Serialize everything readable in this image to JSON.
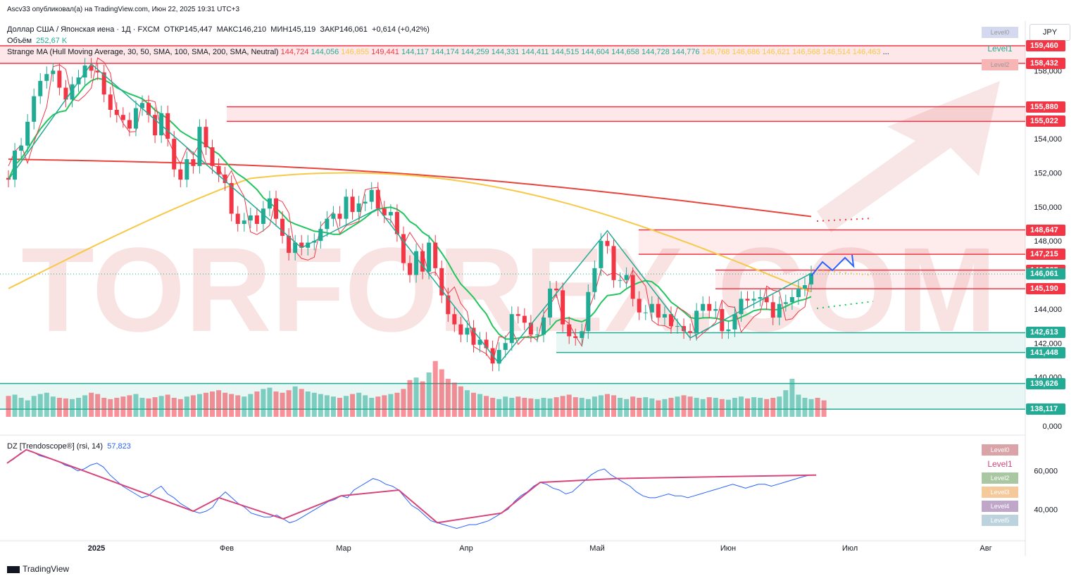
{
  "header": {
    "publisher_line": "Ascv33 опубликовал(а) на TradingView.com, Июн 22, 2025 19:31 UTC+3",
    "symbol": "Доллар США / Японская иена · 1Д · FXCM",
    "open_label": "ОТКР",
    "open": "145,447",
    "high_label": "МАКС",
    "high": "146,210",
    "low_label": "МИН",
    "low": "145,119",
    "close_label": "ЗАКР",
    "close": "146,061",
    "change": "+0,614 (+0,42%)",
    "volume_label": "Объём",
    "volume": "252,67 K",
    "indicator_name": "Strange MA (Hull Moving Average, 30, 50, SMA, 100, SMA, 200, SMA, Neutral)",
    "indicator_values": [
      "144,724",
      "144,056",
      "146,855",
      "149,441",
      "144,117",
      "144,174",
      "144,259",
      "144,331",
      "144,411",
      "144,515",
      "144,604",
      "144,658",
      "144,728",
      "144,776",
      "146,768",
      "146,686",
      "146,621",
      "146,568",
      "146,514",
      "146,463"
    ],
    "indicator_value_colors": [
      "#f23645",
      "#22ab94",
      "#f7c948",
      "#f23645",
      "#22ab94",
      "#22ab94",
      "#22ab94",
      "#22ab94",
      "#22ab94",
      "#22ab94",
      "#22ab94",
      "#22ab94",
      "#22ab94",
      "#22ab94",
      "#f7c948",
      "#f7c948",
      "#f7c948",
      "#f7c948",
      "#f7c948",
      "#f7c948"
    ],
    "more": "..."
  },
  "currency_button": "JPY",
  "level_legend_top": [
    "Level0",
    "Level1",
    "Level2"
  ],
  "level_legend_bottom": [
    "Level0",
    "Level1",
    "Level2",
    "Level3",
    "Level4",
    "Level5"
  ],
  "rsi_header": {
    "name": "DZ [Trendoscope®] (rsi, 14)",
    "value": "57,823"
  },
  "watermark": "TORFOREX.COM",
  "footer_brand": "TradingView",
  "colors": {
    "up": "#22ab94",
    "down": "#f23645",
    "ma30": "#f23645",
    "ma50": "#22c55e",
    "ma100": "#f7c948",
    "ma200": "#e8453c",
    "zigzag": "#22ab94",
    "rsi": "#2962ff",
    "rsi_zigzag": "#d6457b",
    "projection": "#2962ff"
  },
  "chart_data": [
    {
      "type": "candlestick",
      "title": "USDJPY 1D FXCM",
      "ylim": [
        138.0,
        160.0
      ],
      "y_ticks": [
        "140,000",
        "142,000",
        "144,000",
        "146,000",
        "148,000",
        "150,000",
        "152,000",
        "154,000",
        "156,000",
        "158,000"
      ],
      "x_ticks": [
        "2025",
        "Фев",
        "Мар",
        "Апр",
        "Май",
        "Июн",
        "Июл",
        "Авг"
      ],
      "closes": [
        151.6,
        153.3,
        153.6,
        155.0,
        156.5,
        157.4,
        157.8,
        158.0,
        157.0,
        156.3,
        157.2,
        157.6,
        158.3,
        158.0,
        157.9,
        156.6,
        155.7,
        155.4,
        155.1,
        154.6,
        155.8,
        156.1,
        155.4,
        154.2,
        155.5,
        154.0,
        152.2,
        151.6,
        152.8,
        152.4,
        154.7,
        153.5,
        152.4,
        151.9,
        151.4,
        149.6,
        149.0,
        149.2,
        149.5,
        149.0,
        149.9,
        150.5,
        149.3,
        148.3,
        147.3,
        147.9,
        147.6,
        147.9,
        148.0,
        148.7,
        149.3,
        149.6,
        149.3,
        150.6,
        149.7,
        150.2,
        150.3,
        151.0,
        149.9,
        149.5,
        149.7,
        148.4,
        146.7,
        146.0,
        147.4,
        146.2,
        147.9,
        146.4,
        144.8,
        143.7,
        143.1,
        142.5,
        142.9,
        141.9,
        142.2,
        141.7,
        140.8,
        141.6,
        142.0,
        143.7,
        143.6,
        143.2,
        142.5,
        142.5,
        143.5,
        145.2,
        145.1,
        143.1,
        142.4,
        142.3,
        142.7,
        145.0,
        146.4,
        148.0,
        147.7,
        145.7,
        145.7,
        146.0,
        144.6,
        143.8,
        143.8,
        144.3,
        143.5,
        143.7,
        143.0,
        143.0,
        142.7,
        142.6,
        143.9,
        144.3,
        143.9,
        144.0,
        142.7,
        142.8,
        143.7,
        144.6,
        144.5,
        144.6,
        144.7,
        144.4,
        143.5,
        144.3,
        144.4,
        144.7,
        145.2,
        145.4,
        146.1
      ],
      "opens": [
        151.7,
        151.6,
        153.3,
        153.6,
        155.0,
        156.5,
        157.4,
        157.8,
        158.0,
        157.0,
        156.3,
        157.2,
        157.6,
        158.3,
        158.0,
        157.9,
        156.6,
        155.7,
        155.4,
        155.1,
        154.6,
        155.8,
        156.1,
        155.4,
        154.2,
        155.5,
        154.0,
        152.2,
        151.6,
        152.8,
        152.4,
        154.7,
        153.5,
        152.4,
        151.9,
        151.4,
        149.6,
        149.0,
        149.2,
        149.5,
        149.0,
        149.9,
        150.5,
        149.3,
        148.3,
        147.3,
        147.9,
        147.6,
        147.9,
        148.0,
        148.7,
        149.3,
        149.6,
        149.3,
        150.6,
        149.7,
        150.2,
        150.3,
        151.0,
        149.9,
        149.5,
        149.7,
        148.4,
        146.7,
        146.0,
        147.4,
        146.2,
        147.9,
        146.4,
        144.8,
        143.7,
        143.1,
        142.5,
        142.9,
        141.9,
        142.2,
        141.7,
        140.8,
        141.6,
        142.0,
        143.7,
        143.6,
        143.2,
        142.5,
        142.5,
        143.5,
        145.2,
        145.1,
        143.1,
        142.4,
        142.3,
        142.7,
        145.0,
        146.4,
        148.0,
        147.7,
        145.7,
        145.7,
        146.0,
        144.6,
        143.8,
        143.8,
        144.3,
        143.5,
        143.7,
        143.0,
        143.0,
        142.7,
        142.6,
        143.9,
        144.3,
        143.9,
        144.0,
        142.7,
        142.8,
        143.7,
        144.6,
        144.5,
        144.6,
        144.7,
        144.4,
        143.5,
        144.3,
        144.4,
        144.7,
        145.2,
        145.447
      ],
      "volumes": [
        33,
        35,
        30,
        26,
        33,
        36,
        38,
        32,
        30,
        29,
        28,
        30,
        34,
        38,
        36,
        30,
        28,
        30,
        32,
        34,
        36,
        30,
        29,
        31,
        33,
        35,
        30,
        28,
        32,
        34,
        36,
        38,
        40,
        42,
        38,
        36,
        34,
        32,
        36,
        40,
        44,
        46,
        40,
        38,
        42,
        48,
        44,
        40,
        38,
        36,
        34,
        32,
        30,
        33,
        36,
        38,
        34,
        30,
        32,
        34,
        36,
        38,
        44,
        58,
        62,
        56,
        70,
        88,
        75,
        60,
        54,
        48,
        42,
        38,
        36,
        33,
        30,
        28,
        32,
        30,
        32,
        30,
        29,
        28,
        30,
        29,
        31,
        33,
        35,
        31,
        30,
        28,
        32,
        34,
        36,
        34,
        30,
        28,
        32,
        30,
        31,
        29,
        26,
        28,
        30,
        32,
        34,
        32,
        30,
        28,
        31,
        30,
        28,
        27,
        30,
        32,
        29,
        31,
        30,
        28,
        30,
        32,
        42,
        60,
        35,
        30,
        28,
        30,
        26
      ]
    },
    {
      "type": "line",
      "title": "DZ [Trendoscope®] (rsi, 14)",
      "ylim": [
        28,
        72
      ],
      "y_ticks": [
        "40,000",
        "60,000"
      ],
      "values": [
        64,
        66,
        69,
        71,
        70,
        68,
        67,
        66,
        65,
        63,
        62,
        60,
        61,
        63,
        64,
        62,
        58,
        55,
        52,
        50,
        48,
        46,
        47,
        50,
        52,
        48,
        46,
        43,
        41,
        39,
        38,
        39,
        41,
        46,
        49,
        46,
        43,
        41,
        38,
        37,
        36,
        36,
        37,
        35,
        33,
        34,
        36,
        38,
        40,
        42,
        44,
        45,
        47,
        46,
        50,
        52,
        54,
        56,
        55,
        53,
        52,
        50,
        46,
        42,
        40,
        37,
        34,
        33,
        32,
        31,
        30,
        31,
        32,
        32,
        33,
        34,
        36,
        38,
        40,
        44,
        47,
        49,
        52,
        54,
        53,
        51,
        50,
        48,
        49,
        52,
        55,
        58,
        60,
        61,
        58,
        56,
        54,
        52,
        49,
        47,
        46,
        46,
        47,
        48,
        47,
        47,
        46,
        47,
        48,
        49,
        50,
        51,
        52,
        53,
        52,
        51,
        52,
        53,
        53,
        52,
        53,
        54,
        55,
        56,
        57,
        57.8
      ]
    }
  ]
}
